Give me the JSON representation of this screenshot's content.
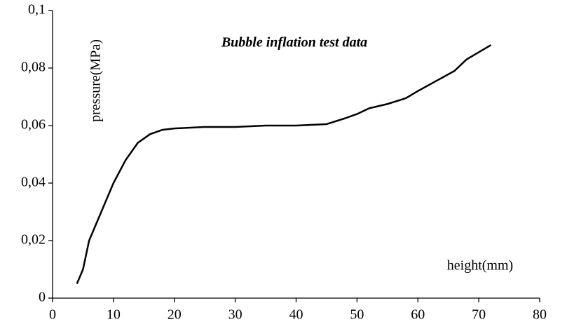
{
  "chart_data": {
    "type": "line",
    "title": "Bubble inflation test data",
    "x_label": "height(mm)",
    "y_label": "pressure(MPa)",
    "xlim": [
      0,
      80
    ],
    "xticks": [
      0,
      10,
      20,
      30,
      40,
      50,
      60,
      70,
      80
    ],
    "ylim": [
      0,
      0.1
    ],
    "yticks": [
      0,
      {
        "value": 0.02,
        "label": "0,02"
      },
      {
        "value": 0.04,
        "label": "0,04"
      },
      {
        "value": 0.06,
        "label": "0,06"
      },
      {
        "value": 0.08,
        "label": "0,08"
      },
      {
        "value": 0.1,
        "label": "0,1"
      }
    ],
    "grid": false,
    "series": [
      {
        "color": "#000000",
        "x": [
          4,
          5,
          6,
          8,
          10,
          12,
          14,
          16,
          18,
          20,
          25,
          30,
          35,
          40,
          45,
          48,
          50,
          52,
          55,
          58,
          60,
          63,
          66,
          68,
          70,
          72
        ],
        "values": [
          0.005,
          0.01,
          0.02,
          0.03,
          0.04,
          0.048,
          0.054,
          0.057,
          0.0585,
          0.059,
          0.0595,
          0.0595,
          0.06,
          0.06,
          0.0605,
          0.0625,
          0.064,
          0.066,
          0.0675,
          0.0695,
          0.072,
          0.0755,
          0.079,
          0.083,
          0.0855,
          0.088
        ]
      }
    ]
  }
}
